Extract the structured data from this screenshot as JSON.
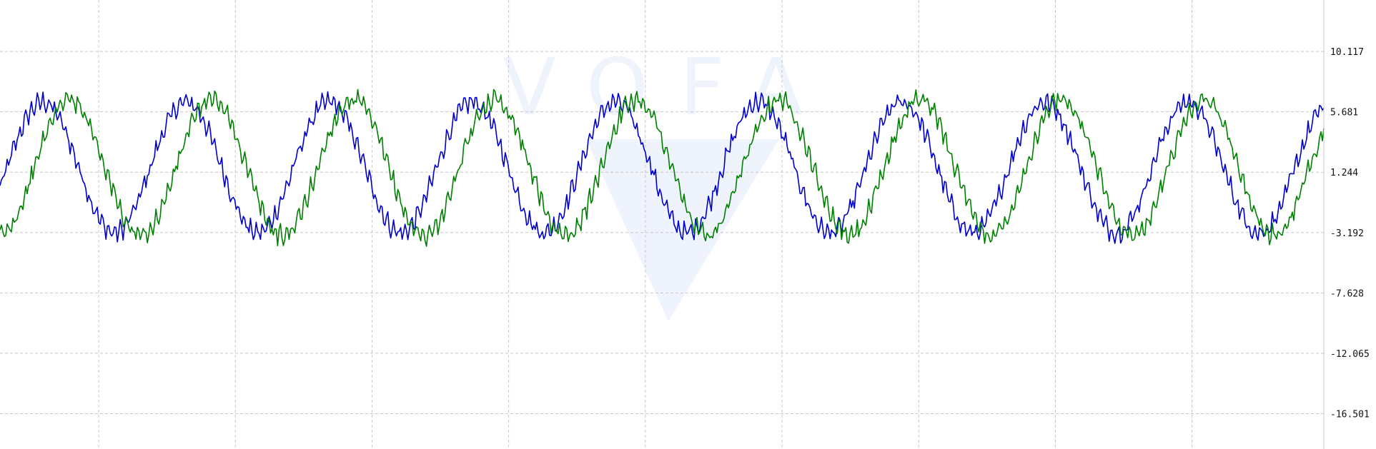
{
  "chart_data": {
    "type": "line",
    "title": "",
    "xlabel": "",
    "ylabel": "",
    "grid": true,
    "ylim": [
      -19.1,
      13.9
    ],
    "y_ticks": [
      "10.117",
      "5.681",
      "1.244",
      "-3.192",
      "-7.628",
      "-12.065",
      "-16.501"
    ],
    "x_range": [
      0,
      1850
    ],
    "x_grid_step": 191,
    "series": [
      {
        "color": "#0000cc",
        "center": 1.6,
        "amplitude": 4.8,
        "period": 200,
        "phase": 10,
        "ripple_period": 8.3,
        "ripple": 0.9
      },
      {
        "color": "#008000",
        "center": 1.6,
        "amplitude": 5.0,
        "period": 198,
        "phase": 48,
        "ripple_period": 8.3,
        "ripple": 0.9
      }
    ]
  },
  "watermark": {
    "text": "VOFA",
    "color": "#dfe8fb"
  }
}
